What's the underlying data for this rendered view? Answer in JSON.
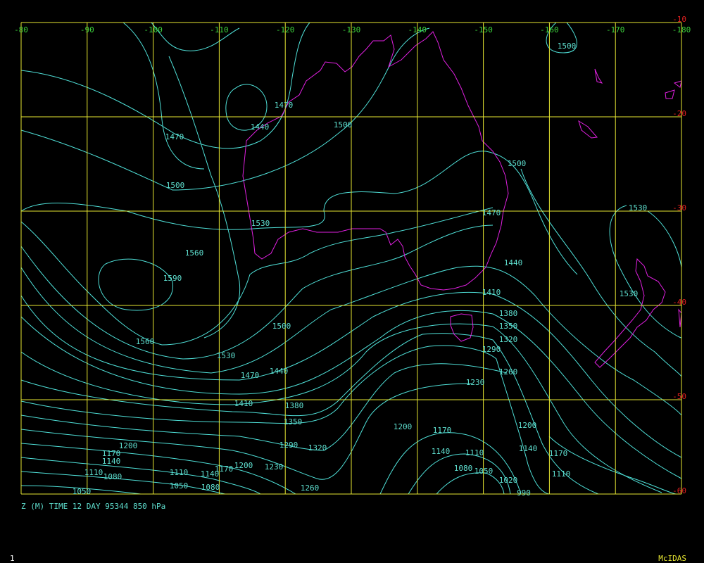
{
  "map": {
    "lon_labels": [
      "-80",
      "-90",
      "-100",
      "-110",
      "-120",
      "-130",
      "-140",
      "-150",
      "-160",
      "-170",
      "-180"
    ],
    "lat_labels": [
      "-10",
      "-20",
      "-30",
      "-40",
      "-50",
      "-60"
    ],
    "contour_labels": [
      "1500",
      "1470",
      "1440",
      "1500",
      "1470",
      "1500",
      "1500",
      "1530",
      "1470",
      "1530",
      "1560",
      "1440",
      "1590",
      "1410",
      "1530",
      "1380",
      "1500",
      "1350",
      "1320",
      "1560",
      "1290",
      "1530",
      "1440",
      "1470",
      "1260",
      "1230",
      "1410",
      "1380",
      "1350",
      "1200",
      "1170",
      "1200",
      "1290",
      "1320",
      "1200",
      "1170",
      "1140",
      "1140",
      "1110",
      "1140",
      "1170",
      "1230",
      "1200",
      "1170",
      "1110",
      "1110",
      "1140",
      "1080",
      "1050",
      "1080",
      "1110",
      "1020",
      "1050",
      "1080",
      "1260",
      "1050",
      "990"
    ],
    "caption": "Z (M) TIME 12 DAY 95344 850 hPa",
    "frame": "1",
    "brand": "McIDAS"
  }
}
